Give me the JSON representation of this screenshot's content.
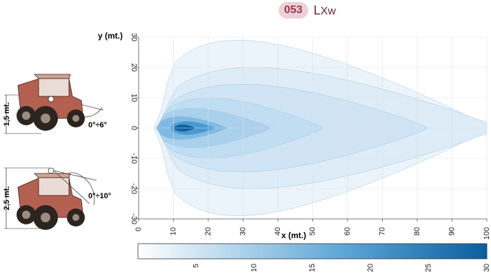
{
  "header": {
    "code": "053",
    "name_first": "L",
    "name_rest": "Xw"
  },
  "mounts": [
    {
      "height_label": "1,5 mt.",
      "angle_label": "0°÷6°"
    },
    {
      "height_label": "2,5 mt.",
      "angle_label": "0°÷10°"
    }
  ],
  "chart_data": {
    "type": "heatmap",
    "xlabel": "x (mt.)",
    "ylabel": "y (mt.)",
    "xlim": [
      0,
      100
    ],
    "ylim": [
      -30,
      30
    ],
    "x_ticks": [
      0,
      10,
      20,
      30,
      40,
      50,
      60,
      70,
      80,
      90,
      100
    ],
    "y_ticks": [
      30,
      20,
      10,
      0,
      -10,
      -20,
      -30
    ],
    "grid": true,
    "colorbar": {
      "range": [
        0,
        30
      ],
      "ticks": [
        5,
        10,
        15,
        20,
        25,
        30
      ],
      "colors": [
        "#ffffff",
        "#5aa4d6",
        "#0a5fa0"
      ]
    },
    "contours": [
      {
        "level": 1,
        "color": "#eaf3fa",
        "x_start": 4.5,
        "x_end": 100,
        "half_width": 29,
        "power": 0.5
      },
      {
        "level": 2,
        "color": "#dcebf7",
        "x_start": 5,
        "x_end": 103,
        "half_width": 20,
        "power": 0.55
      },
      {
        "level": 3,
        "color": "#cfe4f4",
        "x_start": 5,
        "x_end": 83,
        "half_width": 14.5,
        "power": 0.6
      },
      {
        "level": 5,
        "color": "#c0dcf1",
        "x_start": 5,
        "x_end": 53,
        "half_width": 10,
        "power": 0.6
      },
      {
        "level": 8,
        "color": "#a9cfeb",
        "x_start": 5,
        "x_end": 38,
        "half_width": 6.5,
        "power": 0.6
      },
      {
        "level": 13,
        "color": "#7cb8e2",
        "x_start": 5,
        "x_end": 25.5,
        "half_width": 3.8,
        "power": 0.65
      },
      {
        "level": 18,
        "color": "#4597d0",
        "x_start": 9,
        "x_end": 22,
        "half_width": 2.3,
        "power": 0.7
      },
      {
        "level": 25,
        "color": "#0d60a0",
        "x_start": 10,
        "x_end": 16.5,
        "half_width": 1.3,
        "power": 0.75
      }
    ]
  }
}
